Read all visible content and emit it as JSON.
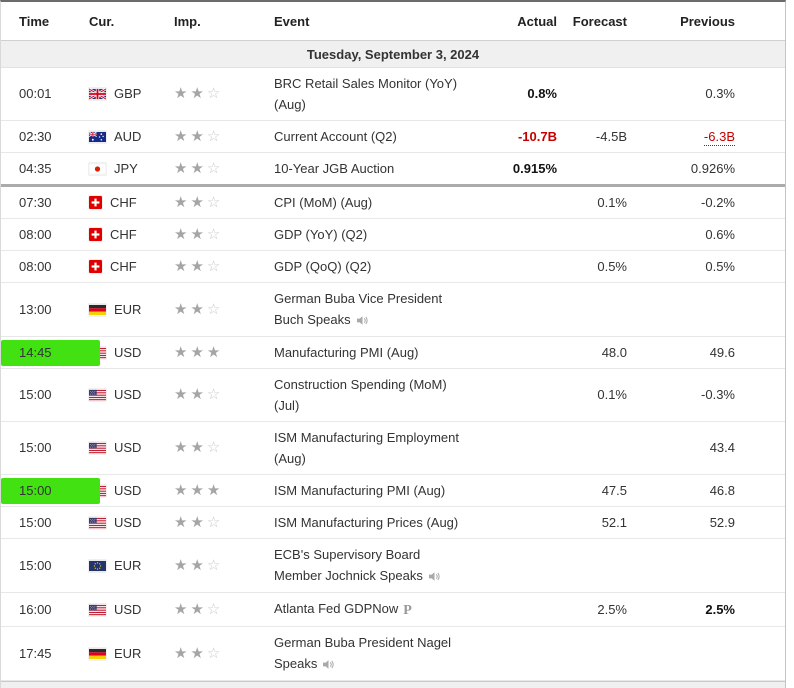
{
  "header": {
    "columns": [
      "Time",
      "Cur.",
      "Imp.",
      "Event",
      "Actual",
      "Forecast",
      "Previous"
    ]
  },
  "date_row": {
    "label": "Tuesday, September 3, 2024"
  },
  "colors": {
    "highlight_green": "#42e212",
    "negative_red": "#c40000",
    "star_filled": "#a5a5a5",
    "star_empty": "#c9c9c9",
    "date_row_bg": "#f0f0f0"
  },
  "icons": {
    "speaker": "speaker-icon",
    "preliminary_label": "P"
  },
  "rows": [
    {
      "time": "00:01",
      "highlighted": false,
      "flag": "gbp",
      "currency": "GBP",
      "importance": 2,
      "event": "BRC Retail Sales Monitor (YoY)\n(Aug)",
      "speaker": false,
      "prelim": false,
      "actual": "0.8%",
      "actual_class": "bold",
      "forecast": "",
      "previous": "0.3%",
      "previous_class": "",
      "thick_divider": false
    },
    {
      "time": "02:30",
      "highlighted": false,
      "flag": "aud",
      "currency": "AUD",
      "importance": 2,
      "event": "Current Account (Q2)",
      "speaker": false,
      "prelim": false,
      "actual": "-10.7B",
      "actual_class": "bold neg",
      "forecast": "-4.5B",
      "previous": "-6.3B",
      "previous_class": "neg dotted",
      "thick_divider": false
    },
    {
      "time": "04:35",
      "highlighted": false,
      "flag": "jpy",
      "currency": "JPY",
      "importance": 2,
      "event": "10-Year JGB Auction",
      "speaker": false,
      "prelim": false,
      "actual": "0.915%",
      "actual_class": "bold",
      "forecast": "",
      "previous": "0.926%",
      "previous_class": "",
      "thick_divider": true
    },
    {
      "time": "07:30",
      "highlighted": false,
      "flag": "chf",
      "currency": "CHF",
      "importance": 2,
      "event": "CPI (MoM) (Aug)",
      "speaker": false,
      "prelim": false,
      "actual": "",
      "actual_class": "",
      "forecast": "0.1%",
      "previous": "-0.2%",
      "previous_class": "",
      "thick_divider": false
    },
    {
      "time": "08:00",
      "highlighted": false,
      "flag": "chf",
      "currency": "CHF",
      "importance": 2,
      "event": "GDP (YoY) (Q2)",
      "speaker": false,
      "prelim": false,
      "actual": "",
      "actual_class": "",
      "forecast": "",
      "previous": "0.6%",
      "previous_class": "",
      "thick_divider": false
    },
    {
      "time": "08:00",
      "highlighted": false,
      "flag": "chf",
      "currency": "CHF",
      "importance": 2,
      "event": "GDP (QoQ) (Q2)",
      "speaker": false,
      "prelim": false,
      "actual": "",
      "actual_class": "",
      "forecast": "0.5%",
      "previous": "0.5%",
      "previous_class": "",
      "thick_divider": false
    },
    {
      "time": "13:00",
      "highlighted": false,
      "flag": "ger",
      "currency": "EUR",
      "importance": 2,
      "event": "German Buba Vice President\nBuch Speaks",
      "speaker": true,
      "prelim": false,
      "actual": "",
      "actual_class": "",
      "forecast": "",
      "previous": "",
      "previous_class": "",
      "thick_divider": false
    },
    {
      "time": "14:45",
      "highlighted": true,
      "flag": "usd",
      "currency": "USD",
      "importance": 3,
      "event": "Manufacturing PMI (Aug)",
      "speaker": false,
      "prelim": false,
      "actual": "",
      "actual_class": "",
      "forecast": "48.0",
      "previous": "49.6",
      "previous_class": "",
      "thick_divider": false
    },
    {
      "time": "15:00",
      "highlighted": false,
      "flag": "usd",
      "currency": "USD",
      "importance": 2,
      "event": "Construction Spending (MoM)\n(Jul)",
      "speaker": false,
      "prelim": false,
      "actual": "",
      "actual_class": "",
      "forecast": "0.1%",
      "previous": "-0.3%",
      "previous_class": "",
      "thick_divider": false
    },
    {
      "time": "15:00",
      "highlighted": false,
      "flag": "usd",
      "currency": "USD",
      "importance": 2,
      "event": "ISM Manufacturing Employment\n(Aug)",
      "speaker": false,
      "prelim": false,
      "actual": "",
      "actual_class": "",
      "forecast": "",
      "previous": "43.4",
      "previous_class": "",
      "thick_divider": false
    },
    {
      "time": "15:00",
      "highlighted": true,
      "flag": "usd",
      "currency": "USD",
      "importance": 3,
      "event": "ISM Manufacturing PMI (Aug)",
      "speaker": false,
      "prelim": false,
      "actual": "",
      "actual_class": "",
      "forecast": "47.5",
      "previous": "46.8",
      "previous_class": "",
      "thick_divider": false
    },
    {
      "time": "15:00",
      "highlighted": false,
      "flag": "usd",
      "currency": "USD",
      "importance": 2,
      "event": "ISM Manufacturing Prices (Aug)",
      "speaker": false,
      "prelim": false,
      "actual": "",
      "actual_class": "",
      "forecast": "52.1",
      "previous": "52.9",
      "previous_class": "",
      "thick_divider": false
    },
    {
      "time": "15:00",
      "highlighted": false,
      "flag": "eur",
      "currency": "EUR",
      "importance": 2,
      "event": "ECB's Supervisory Board\nMember Jochnick Speaks",
      "speaker": true,
      "prelim": false,
      "actual": "",
      "actual_class": "",
      "forecast": "",
      "previous": "",
      "previous_class": "",
      "thick_divider": false
    },
    {
      "time": "16:00",
      "highlighted": false,
      "flag": "usd",
      "currency": "USD",
      "importance": 2,
      "event": "Atlanta Fed GDPNow",
      "speaker": false,
      "prelim": true,
      "actual": "",
      "actual_class": "",
      "forecast": "2.5%",
      "previous": "2.5%",
      "previous_class": "bold",
      "thick_divider": false
    },
    {
      "time": "17:45",
      "highlighted": false,
      "flag": "ger",
      "currency": "EUR",
      "importance": 2,
      "event": "German Buba President Nagel\nSpeaks",
      "speaker": true,
      "prelim": false,
      "actual": "",
      "actual_class": "",
      "forecast": "",
      "previous": "",
      "previous_class": "",
      "thick_divider": false
    }
  ]
}
